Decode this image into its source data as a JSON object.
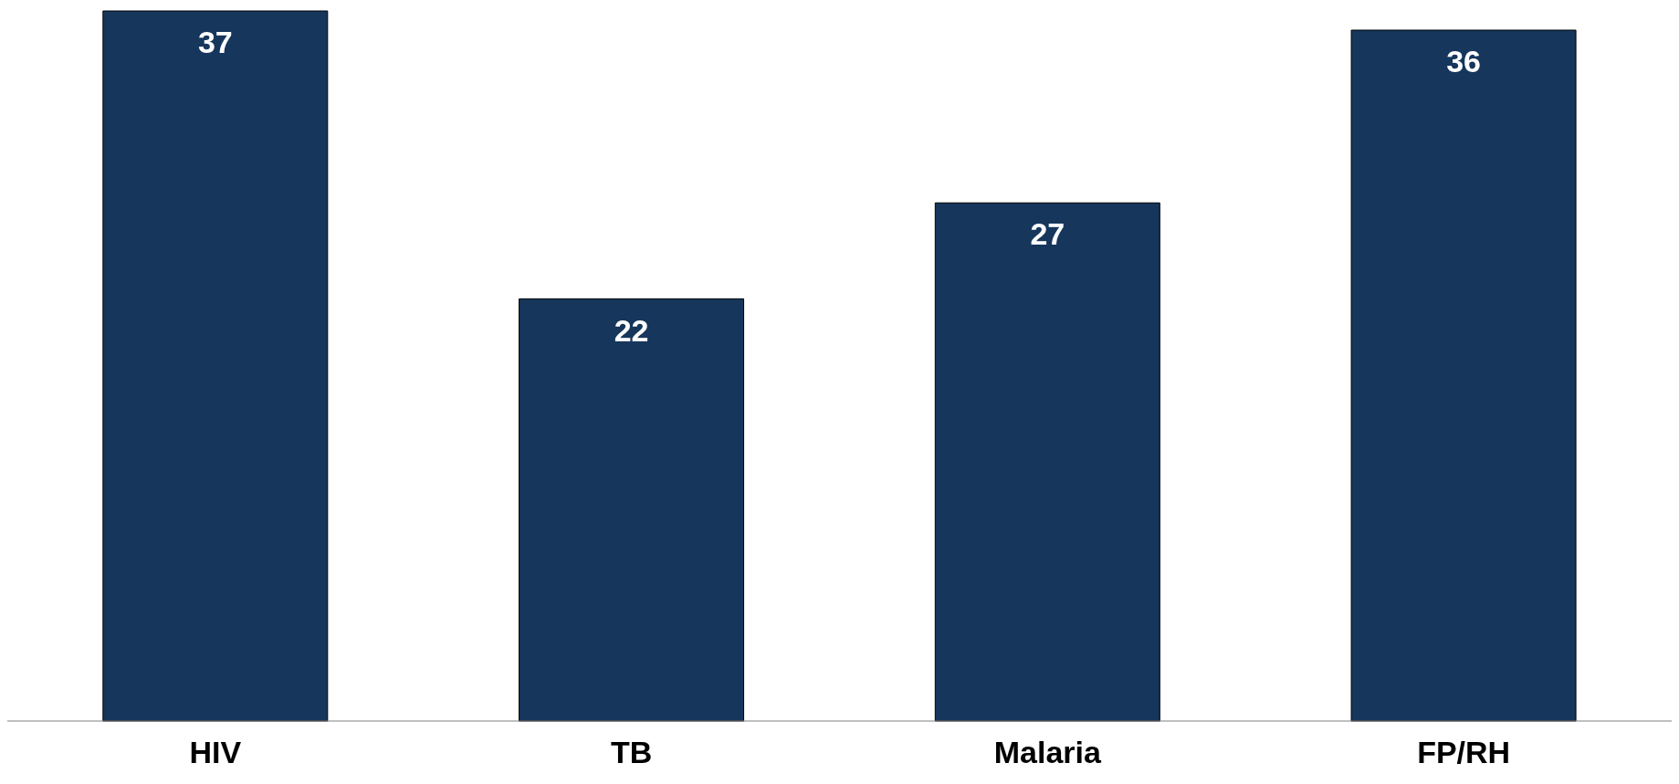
{
  "chart_data": {
    "type": "bar",
    "categories": [
      "HIV",
      "TB",
      "Malaria",
      "FP/RH"
    ],
    "values": [
      37,
      22,
      27,
      36
    ],
    "color": "#16365c",
    "data_labels": true,
    "grid": false,
    "legend": false
  }
}
